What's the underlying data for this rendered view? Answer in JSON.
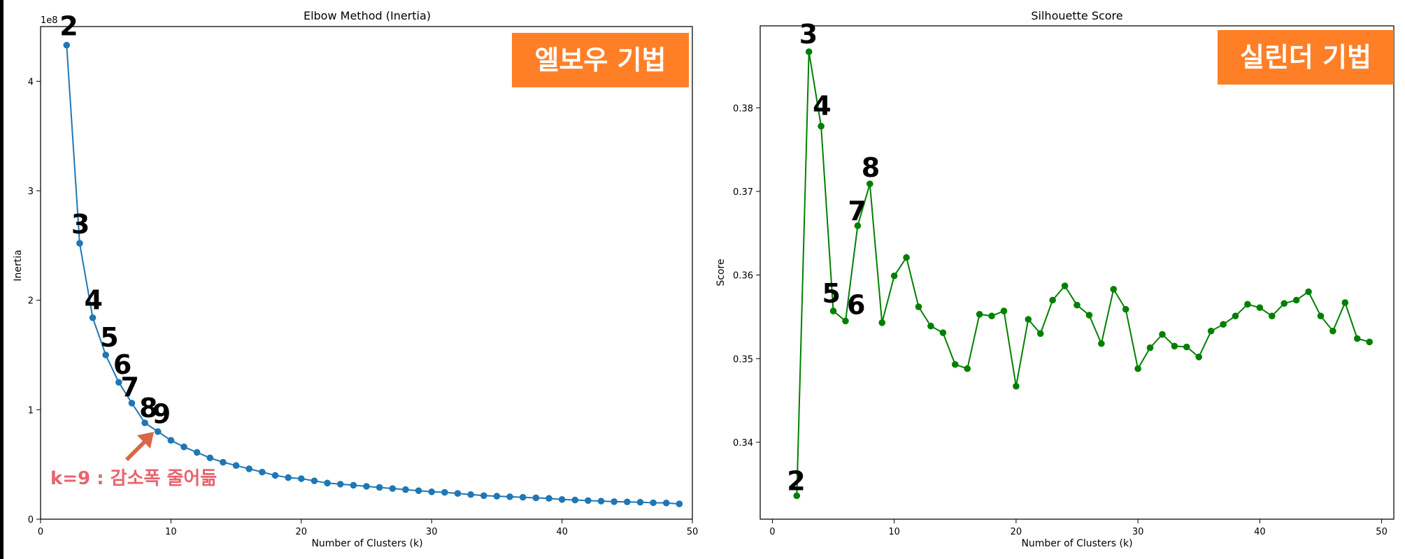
{
  "chart_data": [
    {
      "type": "line",
      "title": "Elbow Method (Inertia)",
      "xlabel": "Number of Clusters (k)",
      "ylabel": "Inertia",
      "y_offset_label": "1e8",
      "xlim": [
        0,
        50
      ],
      "ylim": [
        0,
        4.5
      ],
      "x_ticks": [
        0,
        10,
        20,
        30,
        40,
        50
      ],
      "y_ticks": [
        0,
        1,
        2,
        3,
        4
      ],
      "grid": false,
      "color": "#1f77b4",
      "series": [
        {
          "x": [
            2,
            3,
            4,
            5,
            6,
            7,
            8,
            9,
            10,
            11,
            12,
            13,
            14,
            15,
            16,
            17,
            18,
            19,
            20,
            21,
            22,
            23,
            24,
            25,
            26,
            27,
            28,
            29,
            30,
            31,
            32,
            33,
            34,
            35,
            36,
            37,
            38,
            39,
            40,
            41,
            42,
            43,
            44,
            45,
            46,
            47,
            48,
            49
          ],
          "values": [
            4.33,
            2.52,
            1.84,
            1.5,
            1.25,
            1.06,
            0.88,
            0.8,
            0.72,
            0.66,
            0.61,
            0.56,
            0.52,
            0.49,
            0.46,
            0.43,
            0.4,
            0.38,
            0.37,
            0.35,
            0.33,
            0.32,
            0.31,
            0.3,
            0.29,
            0.28,
            0.27,
            0.26,
            0.25,
            0.245,
            0.235,
            0.225,
            0.215,
            0.21,
            0.205,
            0.2,
            0.195,
            0.19,
            0.18,
            0.175,
            0.17,
            0.165,
            0.16,
            0.158,
            0.155,
            0.15,
            0.148,
            0.14
          ]
        }
      ],
      "point_labels": [
        {
          "k": 2,
          "text": "2"
        },
        {
          "k": 3,
          "text": "3"
        },
        {
          "k": 4,
          "text": "4"
        },
        {
          "k": 5,
          "text": "5"
        },
        {
          "k": 6,
          "text": "6"
        },
        {
          "k": 7,
          "text": "7"
        },
        {
          "k": 8,
          "text": "8"
        },
        {
          "k": 9,
          "text": "9"
        }
      ],
      "badge": {
        "text": "엘보우 기법",
        "color": "#ff7f27"
      },
      "annotation": {
        "text": "k=9 : 감소폭  줄어듦",
        "color": "#e8646e",
        "arrow_color": "#d96846"
      }
    },
    {
      "type": "line",
      "title": "Silhouette Score",
      "xlabel": "Number of Clusters (k)",
      "ylabel": "Score",
      "xlim": [
        -1,
        51
      ],
      "ylim": [
        0.3308,
        0.3898
      ],
      "x_ticks": [
        0,
        10,
        20,
        30,
        40,
        50
      ],
      "y_ticks": [
        0.34,
        0.35,
        0.36,
        0.37,
        0.38
      ],
      "grid": false,
      "color": "#008000",
      "series": [
        {
          "x": [
            2,
            3,
            4,
            5,
            6,
            7,
            8,
            9,
            10,
            11,
            12,
            13,
            14,
            15,
            16,
            17,
            18,
            19,
            20,
            21,
            22,
            23,
            24,
            25,
            26,
            27,
            28,
            29,
            30,
            31,
            32,
            33,
            34,
            35,
            36,
            37,
            38,
            39,
            40,
            41,
            42,
            43,
            44,
            45,
            46,
            47,
            48,
            49
          ],
          "values": [
            0.3336,
            0.3867,
            0.3778,
            0.3557,
            0.3545,
            0.3659,
            0.3709,
            0.3543,
            0.3599,
            0.3621,
            0.3562,
            0.3539,
            0.3531,
            0.3493,
            0.3488,
            0.3553,
            0.3551,
            0.3557,
            0.3467,
            0.3547,
            0.353,
            0.357,
            0.3587,
            0.3564,
            0.3552,
            0.3518,
            0.3583,
            0.3559,
            0.3488,
            0.3513,
            0.3529,
            0.3515,
            0.3514,
            0.3502,
            0.3533,
            0.3541,
            0.3551,
            0.3565,
            0.3561,
            0.3551,
            0.3566,
            0.357,
            0.358,
            0.3551,
            0.3533,
            0.3567,
            0.3524,
            0.352
          ]
        }
      ],
      "point_labels": [
        {
          "k": 2,
          "text": "2"
        },
        {
          "k": 3,
          "text": "3"
        },
        {
          "k": 4,
          "text": "4"
        },
        {
          "k": 5,
          "text": "5"
        },
        {
          "k": 6,
          "text": "6"
        },
        {
          "k": 7,
          "text": "7"
        },
        {
          "k": 8,
          "text": "8"
        }
      ],
      "badge": {
        "text": "실린더 기법",
        "color": "#ff7f27"
      }
    }
  ]
}
